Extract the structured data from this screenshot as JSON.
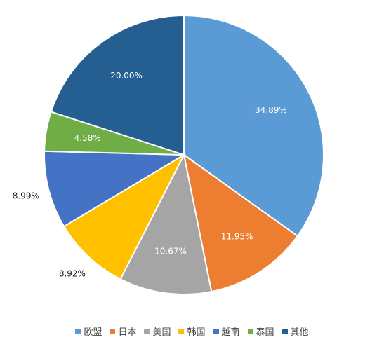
{
  "chart_data": {
    "type": "pie",
    "start_angle_deg": -90,
    "legend_position": "bottom",
    "slices": [
      {
        "label": "欧盟",
        "value": 34.89,
        "display": "34.89%",
        "color": "#5b9bd5",
        "label_color": "#ffffff"
      },
      {
        "label": "日本",
        "value": 11.95,
        "display": "11.95%",
        "color": "#ed7d31",
        "label_color": "#ffffff"
      },
      {
        "label": "美国",
        "value": 10.67,
        "display": "10.67%",
        "color": "#a5a5a5",
        "label_color": "#ffffff"
      },
      {
        "label": "韩国",
        "value": 8.92,
        "display": "8.92%",
        "color": "#ffc000",
        "label_color": "#222222"
      },
      {
        "label": "越南",
        "value": 8.99,
        "display": "8.99%",
        "color": "#4472c4",
        "label_color": "#222222"
      },
      {
        "label": "泰国",
        "value": 4.58,
        "display": "4.58%",
        "color": "#70ad47",
        "label_color": "#ffffff"
      },
      {
        "label": "其他",
        "value": 20.0,
        "display": "20.00%",
        "color": "#255e91",
        "label_color": "#ffffff"
      }
    ]
  }
}
